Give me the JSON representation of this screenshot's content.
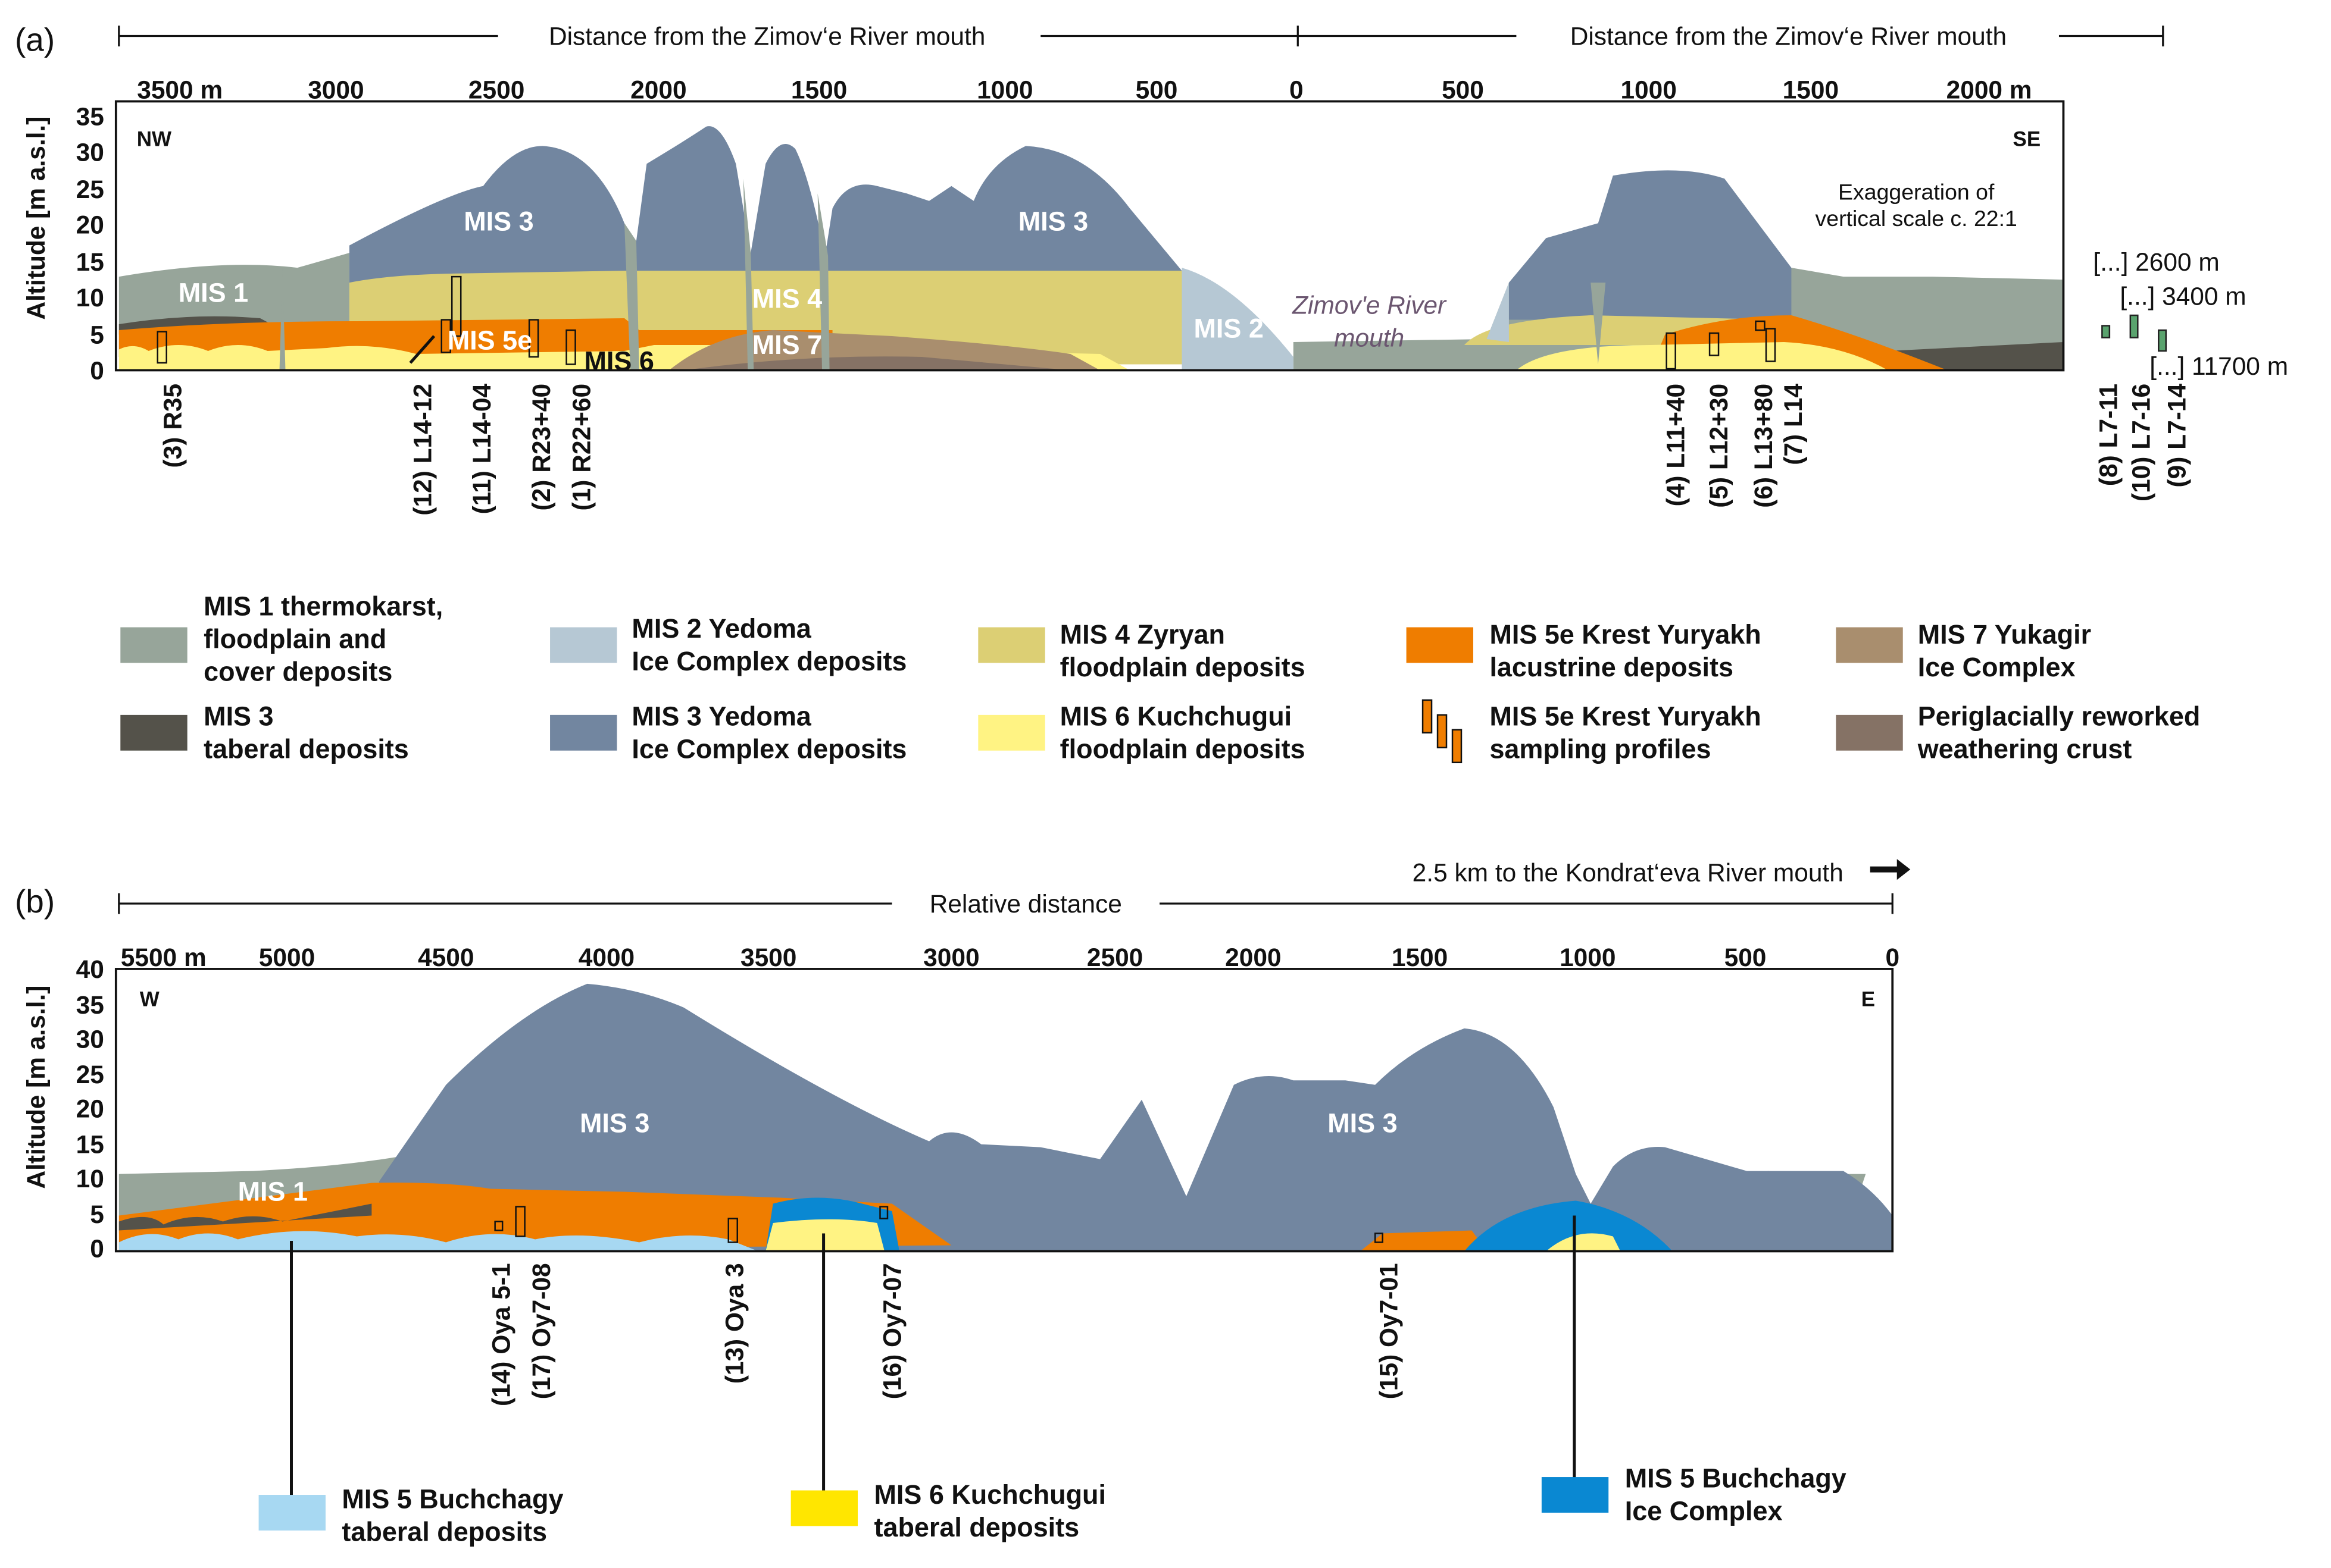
{
  "colors": {
    "mis1": "#97a59a",
    "mis3_taberal": "#54524a",
    "mis2": "#b6c8d4",
    "mis3": "#7286a0",
    "mis4": "#dccf74",
    "mis6": "#fff383",
    "mis5e": "#ef7d00",
    "mis7": "#a98e6e",
    "periglacial": "#857265",
    "mis5_buchchagy_taberal": "#a7d8f2",
    "mis6_taberal": "#ffe600",
    "mis5_ice": "#0a88d2",
    "sample_green": "#5aa36e"
  },
  "panel_a": {
    "tag": "(a)",
    "axis_title_left": "Distance from the Zimov‘e River mouth",
    "axis_title_right": "Distance from the Zimov‘e River mouth",
    "x_ticks_left": [
      "3500 m",
      "3000",
      "2500",
      "2000",
      "1500",
      "1000",
      "500",
      "0"
    ],
    "x_ticks_right": [
      "500",
      "1000",
      "1500",
      "2000 m"
    ],
    "y_label": "Altitude [m a.s.l.]",
    "y_ticks": [
      "0",
      "5",
      "10",
      "15",
      "20",
      "25",
      "30",
      "35"
    ],
    "dir_left": "NW",
    "dir_right": "SE",
    "exaggeration": [
      "Exaggeration of",
      "vertical scale c. 22:1"
    ],
    "unit_labels": {
      "mis1": "MIS 1",
      "mis3a": "MIS 3",
      "mis3b": "MIS 3",
      "mis5e": "MIS 5e",
      "mis6": "MIS 6",
      "mis4": "MIS 4",
      "mis7": "MIS 7",
      "mis2": "MIS 2"
    },
    "river_mouth": [
      "Zimov'e River",
      "mouth"
    ],
    "offsets": [
      "[...] 2600 m",
      "[...] 3400 m",
      "[...] 11700 m"
    ],
    "samples": [
      "(3) R35",
      "(12) L14-12",
      "(11) L14-04",
      "(2) R23+40",
      "(1) R22+60",
      "(4) L11+40",
      "(5) L12+30",
      "(6) L13+80",
      "(7) L14",
      "(8) L7-11",
      "(10) L7-16",
      "(9) L7-14"
    ]
  },
  "legend": [
    {
      "key": "mis1",
      "lines": [
        "MIS 1 thermokarst,",
        "floodplain and",
        "cover deposits"
      ]
    },
    {
      "key": "mis3_taberal",
      "lines": [
        "MIS 3",
        "taberal deposits"
      ]
    },
    {
      "key": "mis2",
      "lines": [
        "MIS 2 Yedoma",
        "Ice Complex deposits"
      ]
    },
    {
      "key": "mis3",
      "lines": [
        "MIS 3 Yedoma",
        "Ice Complex deposits"
      ]
    },
    {
      "key": "mis4",
      "lines": [
        "MIS 4 Zyryan",
        "floodplain deposits"
      ]
    },
    {
      "key": "mis6",
      "lines": [
        "MIS 6 Kuchchugui",
        "floodplain deposits"
      ]
    },
    {
      "key": "mis5e",
      "lines": [
        "MIS 5e Krest Yuryakh",
        "lacustrine deposits"
      ]
    },
    {
      "key": "profiles",
      "lines": [
        "MIS 5e Krest Yuryakh",
        "sampling profiles"
      ]
    },
    {
      "key": "mis7",
      "lines": [
        "MIS 7 Yukagir",
        "Ice Complex"
      ]
    },
    {
      "key": "periglacial",
      "lines": [
        "Periglacially reworked",
        "weathering crust"
      ]
    }
  ],
  "panel_b": {
    "tag": "(b)",
    "axis_title": "Relative distance",
    "kondrateva": "2.5 km to the Kondrat‘eva River mouth",
    "x_ticks": [
      "5500 m",
      "5000",
      "4500",
      "4000",
      "3500",
      "3000",
      "2500",
      "2000",
      "1500",
      "1000",
      "500",
      "0"
    ],
    "y_label": "Altitude [m a.s.l.]",
    "y_ticks": [
      "0",
      "5",
      "10",
      "15",
      "20",
      "25",
      "30",
      "35",
      "40"
    ],
    "dir_left": "W",
    "dir_right": "E",
    "unit_labels": {
      "mis1": "MIS 1",
      "mis3a": "MIS 3",
      "mis3b": "MIS 3"
    },
    "samples": [
      "(14) Oya 5-1",
      "(17) Oy7-08",
      "(13) Oya 3",
      "(16) Oy7-07",
      "(15) Oy7-01"
    ],
    "legend": [
      {
        "key": "mis5_buchchagy_taberal",
        "lines": [
          "MIS 5 Buchchagy",
          "taberal deposits"
        ]
      },
      {
        "key": "mis6_taberal",
        "lines": [
          "MIS 6 Kuchchugui",
          "taberal deposits"
        ]
      },
      {
        "key": "mis5_ice",
        "lines": [
          "MIS 5 Buchchagy",
          "Ice Complex"
        ]
      }
    ]
  }
}
